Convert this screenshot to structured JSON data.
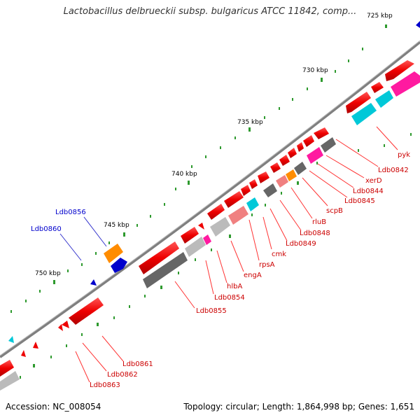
{
  "title": "Lactobacillus delbrueckii subsp. bulgaricus ATCC 11842, comp...",
  "footer": {
    "accession": "Accession: NC_008054",
    "summary": "Topology: circular; Length: 1,864,998 bp; Genes: 1,651"
  },
  "kbp_labels": [
    "725 kbp",
    "730 kbp",
    "735 kbp",
    "740 kbp",
    "745 kbp",
    "750 kbp"
  ],
  "gene_labels_red": [
    "pyk",
    "Ldb0842",
    "xerD",
    "Ldb0844",
    "Ldb0845",
    "scpB",
    "rluB",
    "Ldb0848",
    "Ldb0849",
    "cmk",
    "rpsA",
    "engA",
    "hlbA",
    "Ldb0854",
    "Ldb0855",
    "Ldb0861",
    "Ldb0862",
    "Ldb0863"
  ],
  "gene_labels_blue": [
    "Ldb0856",
    "Ldb0860"
  ],
  "colors": {
    "backbone": "#7f7f7f",
    "cds": "#ff0000",
    "blue_feature": "#0000cc",
    "tick_major": "#1a7a1a",
    "tick_minor": "#2e9a2e",
    "cyan_feature": "#00c8d8",
    "magenta_feature": "#ff1aa0",
    "orange_feature": "#ff8c00"
  }
}
